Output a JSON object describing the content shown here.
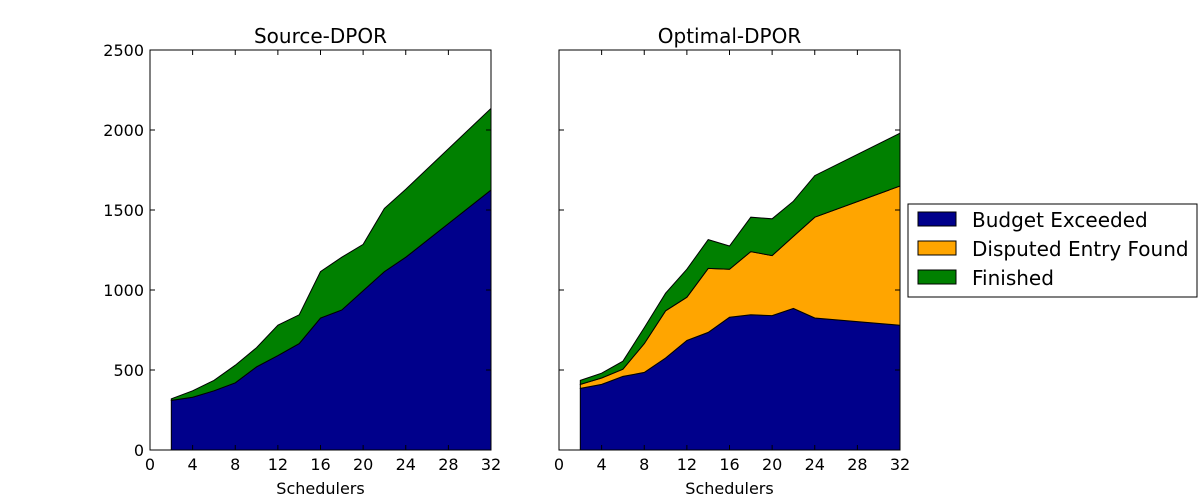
{
  "chart_data": [
    {
      "type": "area",
      "stacked": true,
      "title": "Source-DPOR",
      "xlabel": "Schedulers",
      "ylabel": "",
      "xlim": [
        0,
        32
      ],
      "ylim": [
        0,
        2500
      ],
      "xticks": [
        "0",
        "4",
        "8",
        "12",
        "16",
        "20",
        "24",
        "28",
        "32"
      ],
      "yticks": [
        "0",
        "500",
        "1000",
        "1500",
        "2000",
        "2500"
      ],
      "grid": false,
      "x": [
        2,
        4,
        6,
        8,
        10,
        12,
        14,
        16,
        18,
        20,
        22,
        24,
        32
      ],
      "series": [
        {
          "name": "Budget Exceeded",
          "values": [
            310,
            330,
            370,
            420,
            520,
            590,
            665,
            825,
            875,
            995,
            1115,
            1205,
            1625
          ]
        },
        {
          "name": "Disputed Entry Found",
          "values": [
            0,
            0,
            0,
            0,
            0,
            0,
            0,
            0,
            0,
            0,
            0,
            0,
            0
          ]
        },
        {
          "name": "Finished",
          "values": [
            10,
            40,
            65,
            110,
            120,
            190,
            180,
            290,
            330,
            290,
            395,
            425,
            510
          ]
        }
      ]
    },
    {
      "type": "area",
      "stacked": true,
      "title": "Optimal-DPOR",
      "xlabel": "Schedulers",
      "ylabel": "",
      "xlim": [
        0,
        32
      ],
      "ylim": [
        0,
        2500
      ],
      "xticks": [
        "0",
        "4",
        "8",
        "12",
        "16",
        "20",
        "24",
        "28",
        "32"
      ],
      "yticks": [],
      "grid": false,
      "x": [
        2,
        4,
        6,
        8,
        10,
        12,
        14,
        16,
        18,
        20,
        22,
        24,
        32
      ],
      "series": [
        {
          "name": "Budget Exceeded",
          "values": [
            385,
            410,
            460,
            485,
            575,
            685,
            735,
            830,
            845,
            840,
            885,
            825,
            780
          ]
        },
        {
          "name": "Disputed Entry Found",
          "values": [
            25,
            40,
            45,
            180,
            295,
            270,
            400,
            300,
            395,
            375,
            450,
            630,
            870
          ]
        },
        {
          "name": "Finished",
          "values": [
            25,
            30,
            50,
            100,
            110,
            175,
            180,
            145,
            215,
            230,
            220,
            260,
            330
          ]
        }
      ]
    }
  ],
  "legend": {
    "placement": "right",
    "items": [
      "Budget Exceeded",
      "Disputed Entry Found",
      "Finished"
    ]
  },
  "colors": {
    "Budget Exceeded": "#00008b",
    "Disputed Entry Found": "#ffa500",
    "Finished": "#008000"
  }
}
